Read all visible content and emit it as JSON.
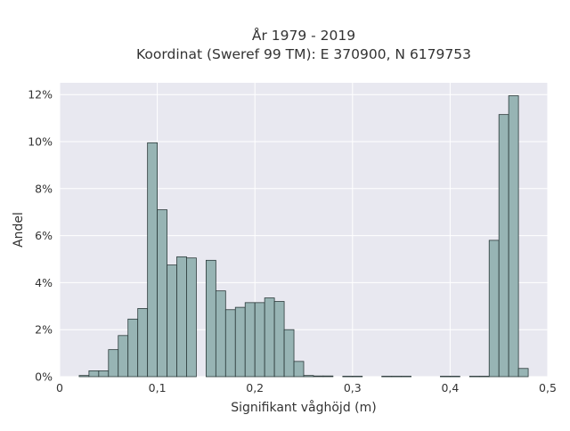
{
  "chart_data": {
    "type": "bar",
    "title_line1": "År 1979 - 2019",
    "title_line2": "Koordinat (Sweref 99 TM): E 370900, N 6179753",
    "xlabel": "Signifikant våghöjd (m)",
    "ylabel": "Andel",
    "xlim": [
      0,
      0.5
    ],
    "ylim": [
      0,
      12.5
    ],
    "grid": true,
    "bin_width": 0.01,
    "x_ticks": [
      {
        "value": 0,
        "label": "0"
      },
      {
        "value": 0.1,
        "label": "0,1"
      },
      {
        "value": 0.2,
        "label": "0,2"
      },
      {
        "value": 0.3,
        "label": "0,3"
      },
      {
        "value": 0.4,
        "label": "0,4"
      },
      {
        "value": 0.5,
        "label": "0,5"
      }
    ],
    "y_ticks": [
      {
        "value": 0,
        "label": "0%"
      },
      {
        "value": 2,
        "label": "2%"
      },
      {
        "value": 4,
        "label": "4%"
      },
      {
        "value": 6,
        "label": "6%"
      },
      {
        "value": 8,
        "label": "8%"
      },
      {
        "value": 10,
        "label": "10%"
      },
      {
        "value": 12,
        "label": "12%"
      }
    ],
    "bins_left_edges": [
      0.02,
      0.03,
      0.04,
      0.05,
      0.06,
      0.07,
      0.08,
      0.09,
      0.1,
      0.11,
      0.12,
      0.13,
      0.14,
      0.15,
      0.16,
      0.17,
      0.18,
      0.19,
      0.2,
      0.21,
      0.22,
      0.23,
      0.24,
      0.25,
      0.26,
      0.27,
      0.28,
      0.29,
      0.3,
      0.31,
      0.32,
      0.33,
      0.34,
      0.35,
      0.36,
      0.37,
      0.38,
      0.39,
      0.4,
      0.41,
      0.42,
      0.43,
      0.44,
      0.45,
      0.46,
      0.47
    ],
    "values": [
      0.05,
      0.25,
      0.25,
      1.15,
      1.75,
      2.45,
      2.9,
      9.95,
      7.1,
      4.75,
      5.1,
      5.05,
      0,
      4.95,
      3.65,
      2.85,
      2.95,
      3.15,
      3.15,
      3.35,
      3.2,
      2.0,
      0.65,
      0.05,
      0.03,
      0.03,
      0,
      0.02,
      0.02,
      0,
      0,
      0.02,
      0.02,
      0.02,
      0,
      0,
      0,
      0.02,
      0.02,
      0,
      0.02,
      0.02,
      5.8,
      11.15,
      11.95,
      0.35
    ],
    "bar_color": "#97b4b4",
    "bar_edge_color": "#2b3a3a",
    "plot_background": "#e8e8f0",
    "grid_color": "#ffffff"
  }
}
